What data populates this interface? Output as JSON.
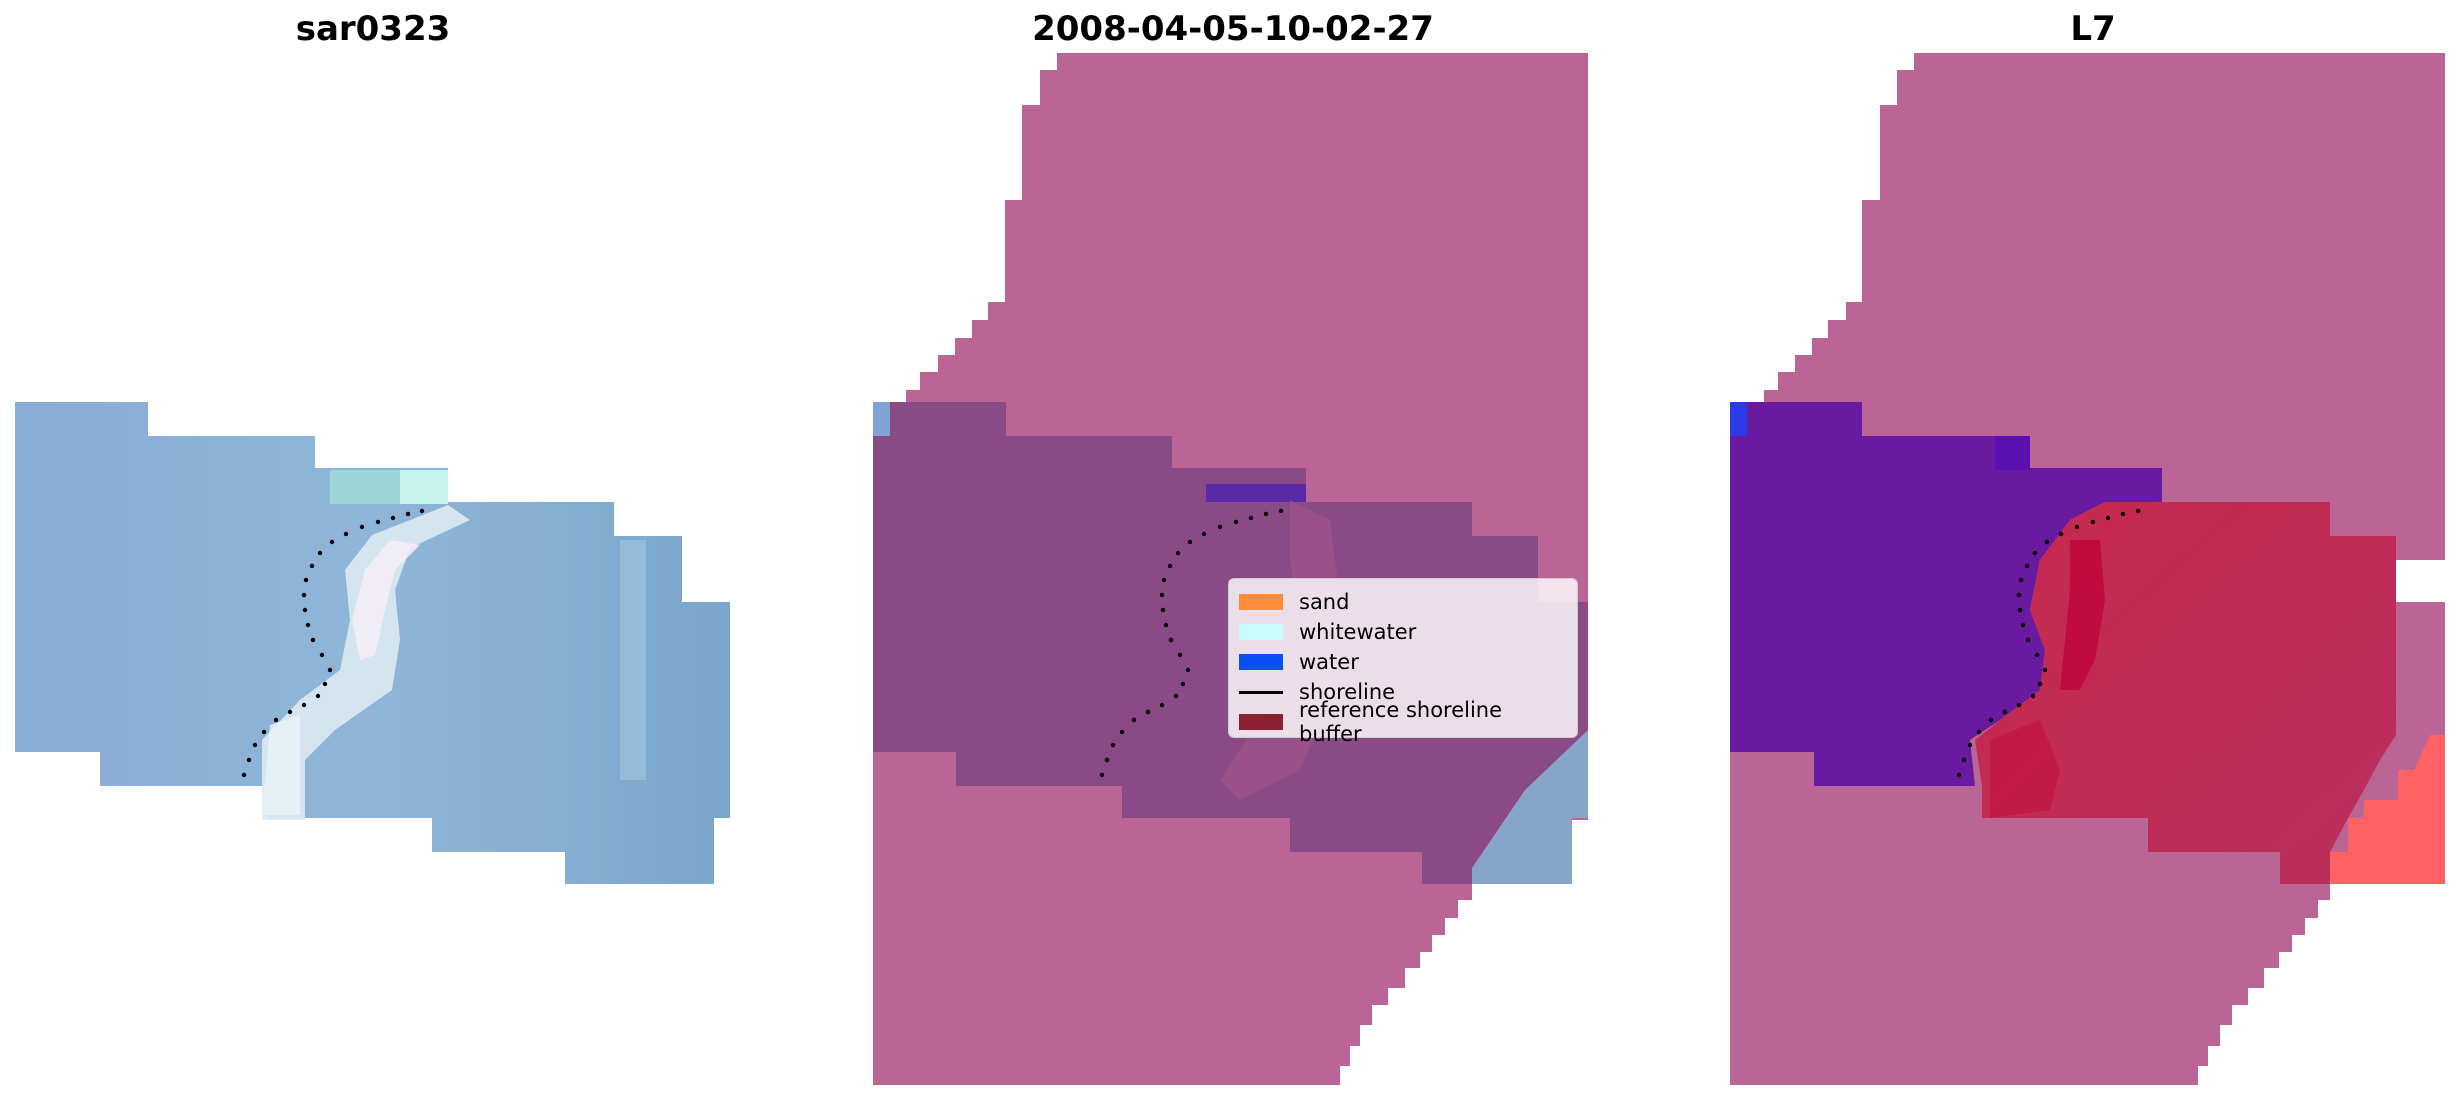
{
  "panels": [
    {
      "title": "sar0323"
    },
    {
      "title": "2008-04-05-10-02-27"
    },
    {
      "title": "L7"
    }
  ],
  "legend": {
    "items": [
      {
        "label": "sand",
        "color": "#ff8c3a"
      },
      {
        "label": "whitewater",
        "color": "#c8fcfc"
      },
      {
        "label": "water",
        "color": "#0b4ff5"
      },
      {
        "label": "shoreline",
        "color": "#000000"
      },
      {
        "label": "reference shoreline buffer",
        "color": "#8c2030"
      }
    ]
  },
  "colors": {
    "buffer": "#bb6596",
    "image_blue": "#8aaad2",
    "overlay_purple": "#8a4a86",
    "water_purple": "#6a1aa0",
    "sand_red": "#c02a58",
    "sand_bright": "#ff6060",
    "whitewater_light": "#e0eef2",
    "shoreline": "#000000"
  }
}
